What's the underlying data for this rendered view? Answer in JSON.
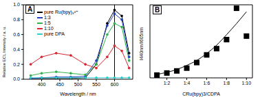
{
  "chart_data": [
    {
      "type": "line",
      "title": "A",
      "x_label": "Wavelength / nm",
      "y_label": "Relative ECL Intensity / a. u.",
      "x": [
        370,
        400,
        440,
        480,
        520,
        550,
        580,
        600,
        620,
        640
      ],
      "xlim": [
        350,
        650
      ],
      "xticks": [
        400,
        450,
        500,
        550,
        600
      ],
      "ylim": [
        0,
        1.0
      ],
      "yticks": [
        {
          "value": 0,
          "label": "0.0"
        },
        0.2,
        0.4,
        0.6,
        0.8,
        {
          "value": 1,
          "label": "1.0"
        }
      ],
      "legend": "upper left",
      "marker": "circle",
      "vline": 600,
      "series": [
        {
          "name": "pure Ru(bpy)₃²⁺",
          "color": "#000000",
          "values": [
            0.01,
            0.01,
            0.01,
            0.01,
            0.02,
            0.2,
            0.75,
            0.93,
            0.85,
            0.35
          ]
        },
        {
          "name": "1:3",
          "color": "#1f3fbf",
          "values": [
            0.01,
            0.02,
            0.03,
            0.03,
            0.04,
            0.25,
            0.72,
            0.88,
            0.8,
            0.3
          ]
        },
        {
          "name": "1:5",
          "color": "#2db34a",
          "values": [
            0.05,
            0.08,
            0.1,
            0.08,
            0.06,
            0.2,
            0.6,
            0.75,
            0.7,
            0.25
          ]
        },
        {
          "name": "1:10",
          "color": "#d9262e",
          "values": [
            0.2,
            0.3,
            0.35,
            0.32,
            0.2,
            0.15,
            0.3,
            0.45,
            0.38,
            0.15
          ]
        },
        {
          "name": "pure DPA",
          "color": "#33cccc",
          "values": [
            0.02,
            0.02,
            0.02,
            0.02,
            0.02,
            0.02,
            0.02,
            0.02,
            0.02,
            0.02
          ]
        }
      ]
    },
    {
      "type": "scatter",
      "title": "B",
      "x_label": "CRu(bpy)3/CDPA",
      "y_label": "I440nm/I605nm",
      "x": [
        1,
        2,
        3,
        4,
        5,
        6,
        7,
        8,
        9,
        10
      ],
      "xlim": [
        0.3,
        10.6
      ],
      "xticks": [
        {
          "value": 2,
          "label": "1:2"
        },
        {
          "value": 4,
          "label": "1:4"
        },
        {
          "value": 6,
          "label": "1:6"
        },
        {
          "value": 8,
          "label": "1:8"
        },
        {
          "value": 10,
          "label": "1:10"
        }
      ],
      "ylim": [
        0,
        1.05
      ],
      "tick_labels": "x",
      "series": [
        {
          "type": "scatter",
          "marker": "square",
          "color": "#000000",
          "values": [
            0.04,
            0.07,
            0.1,
            0.14,
            0.22,
            0.33,
            0.42,
            0.55,
            1.0,
            0.6
          ]
        },
        {
          "type": "line",
          "color": "#000000",
          "values": [
            0.05,
            0.08,
            0.12,
            0.18,
            0.25,
            0.35,
            0.47,
            0.62,
            0.78,
            0.95
          ]
        }
      ]
    }
  ]
}
